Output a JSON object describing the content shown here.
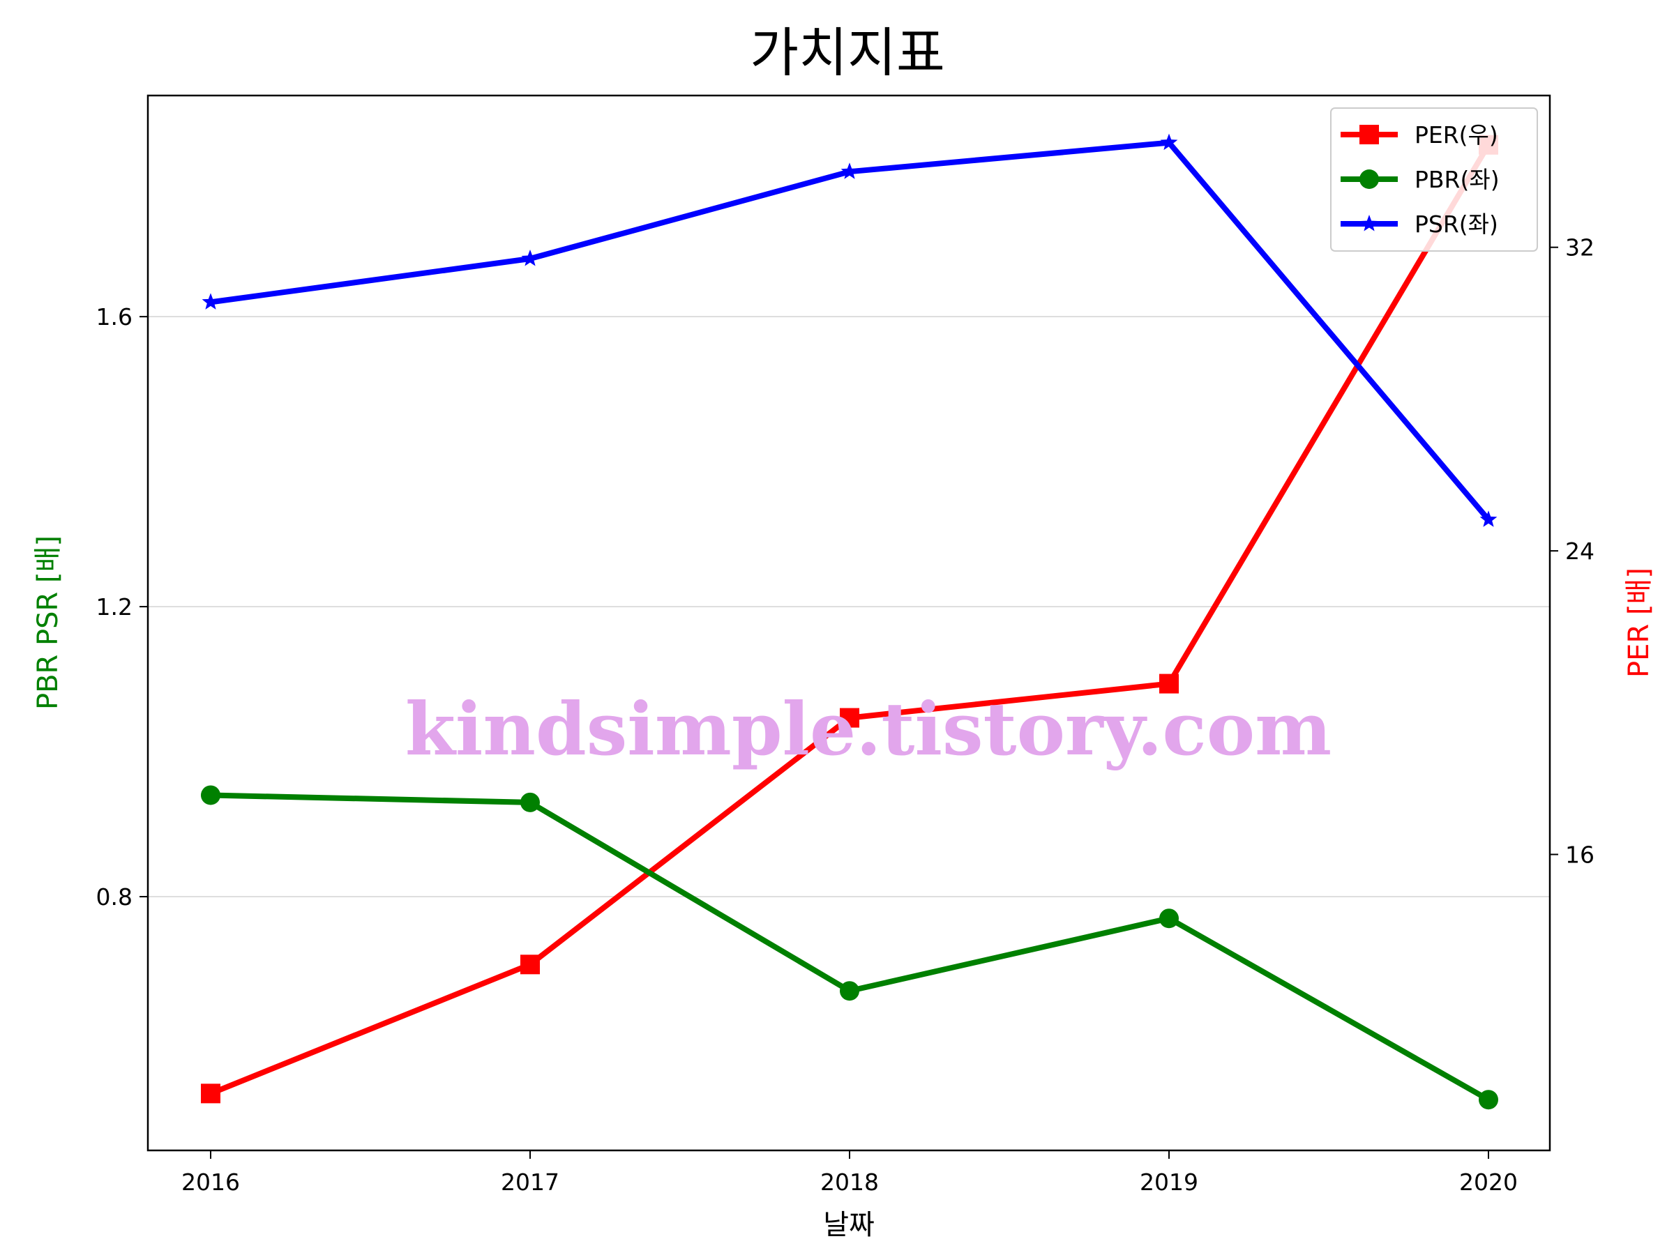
{
  "chart_data": {
    "type": "line",
    "title": "가치지표",
    "xlabel": "날짜",
    "ylabel_left": "PBR PSR [배]",
    "ylabel_right": "PER [배]",
    "categories": [
      "2016",
      "2017",
      "2018",
      "2019",
      "2020"
    ],
    "y_left": {
      "range": [
        0.45,
        1.905
      ],
      "ticks": [
        0.8,
        1.2,
        1.6
      ],
      "tick_labels": [
        "0.8",
        "1.2",
        "1.6"
      ]
    },
    "y_right": {
      "range": [
        8.2,
        36.0
      ],
      "ticks": [
        16,
        24,
        32
      ],
      "tick_labels": [
        "16",
        "24",
        "32"
      ]
    },
    "grid": "horizontal (left axis)",
    "legend_position": "top-right",
    "series": [
      {
        "name": "PER(우)",
        "axis": "right",
        "color": "#ff0000",
        "marker": "square",
        "values": [
          9.7,
          13.1,
          19.6,
          20.5,
          34.7
        ]
      },
      {
        "name": "PBR(좌)",
        "axis": "left",
        "color": "#008000",
        "marker": "circle",
        "values": [
          0.94,
          0.93,
          0.67,
          0.77,
          0.52
        ]
      },
      {
        "name": "PSR(좌)",
        "axis": "left",
        "color": "#0000ff",
        "marker": "star",
        "values": [
          1.62,
          1.68,
          1.8,
          1.84,
          1.32
        ]
      }
    ],
    "watermark": "kindsimple.tistory.com"
  }
}
